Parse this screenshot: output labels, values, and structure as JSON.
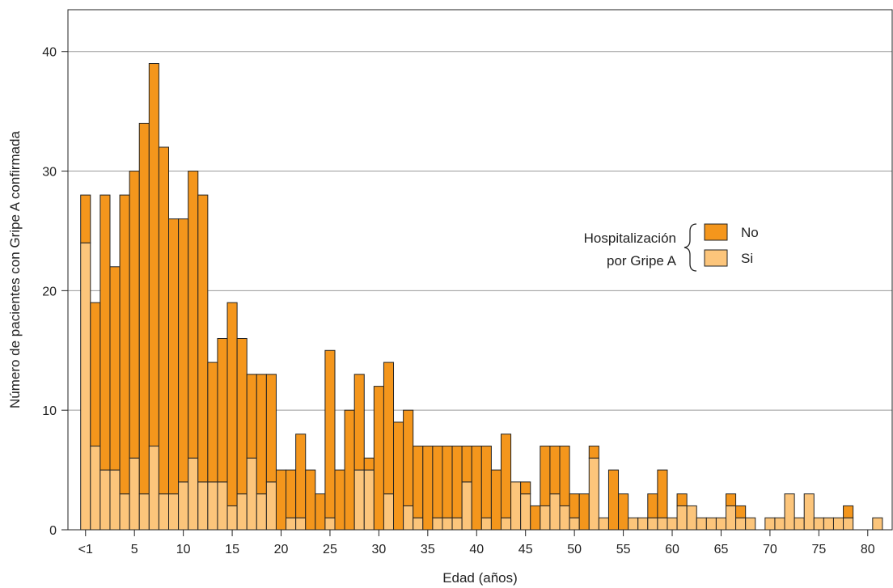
{
  "chart_data": {
    "type": "bar",
    "stacked": true,
    "title": "",
    "xlabel": "Edad (años)",
    "ylabel": "Número de pacientes con Gripe A confirmada",
    "ylim": [
      0,
      43.5
    ],
    "xlim": [
      -1.8,
      82.5
    ],
    "grid": true,
    "yticks": [
      0,
      10,
      20,
      30,
      40
    ],
    "xticks": [
      {
        "value": 0,
        "label": "<1"
      },
      {
        "value": 5,
        "label": "5"
      },
      {
        "value": 10,
        "label": "10"
      },
      {
        "value": 15,
        "label": "15"
      },
      {
        "value": 20,
        "label": "20"
      },
      {
        "value": 25,
        "label": "25"
      },
      {
        "value": 30,
        "label": "30"
      },
      {
        "value": 35,
        "label": "35"
      },
      {
        "value": 40,
        "label": "40"
      },
      {
        "value": 45,
        "label": "45"
      },
      {
        "value": 50,
        "label": "50"
      },
      {
        "value": 55,
        "label": "55"
      },
      {
        "value": 60,
        "label": "60"
      },
      {
        "value": 65,
        "label": "65"
      },
      {
        "value": 70,
        "label": "70"
      },
      {
        "value": 75,
        "label": "75"
      },
      {
        "value": 80,
        "label": "80"
      }
    ],
    "legend": {
      "title_lines": [
        "Hospitalización",
        "por Gripe A"
      ],
      "placement": "center-right"
    },
    "x": [
      0,
      1,
      2,
      3,
      4,
      5,
      6,
      7,
      8,
      9,
      10,
      11,
      12,
      13,
      14,
      15,
      16,
      17,
      18,
      19,
      20,
      21,
      22,
      23,
      24,
      25,
      26,
      27,
      28,
      29,
      30,
      31,
      32,
      33,
      34,
      35,
      36,
      37,
      38,
      39,
      40,
      41,
      42,
      43,
      44,
      45,
      46,
      47,
      48,
      49,
      50,
      51,
      52,
      53,
      54,
      55,
      56,
      57,
      58,
      59,
      60,
      61,
      62,
      63,
      64,
      65,
      66,
      67,
      68,
      69,
      70,
      71,
      72,
      73,
      74,
      75,
      76,
      77,
      78,
      79,
      80,
      81
    ],
    "series": [
      {
        "name": "Si",
        "color": "#fcc57b",
        "values": [
          24,
          7,
          5,
          5,
          3,
          6,
          3,
          7,
          3,
          3,
          4,
          6,
          4,
          4,
          4,
          2,
          3,
          6,
          3,
          4,
          0,
          1,
          1,
          0,
          0,
          1,
          0,
          0,
          5,
          5,
          0,
          3,
          0,
          2,
          1,
          0,
          1,
          1,
          1,
          4,
          0,
          1,
          0,
          1,
          4,
          3,
          0,
          2,
          3,
          2,
          1,
          0,
          6,
          1,
          0,
          0,
          1,
          1,
          1,
          1,
          1,
          2,
          2,
          1,
          1,
          1,
          2,
          1,
          1,
          0,
          1,
          1,
          3,
          1,
          3,
          1,
          1,
          1,
          1,
          0,
          0,
          1
        ]
      },
      {
        "name": "No",
        "color": "#f4961c",
        "values": [
          4,
          12,
          23,
          17,
          25,
          24,
          31,
          32,
          29,
          23,
          22,
          24,
          24,
          10,
          12,
          17,
          13,
          7,
          10,
          9,
          5,
          4,
          7,
          5,
          3,
          14,
          5,
          10,
          8,
          1,
          12,
          11,
          9,
          8,
          6,
          7,
          6,
          6,
          6,
          3,
          7,
          6,
          5,
          7,
          0,
          1,
          2,
          5,
          4,
          5,
          2,
          3,
          1,
          0,
          5,
          3,
          0,
          0,
          2,
          4,
          0,
          1,
          0,
          0,
          0,
          0,
          1,
          1,
          0,
          0,
          0,
          0,
          0,
          0,
          0,
          0,
          0,
          0,
          1,
          0,
          0,
          0
        ]
      }
    ]
  }
}
